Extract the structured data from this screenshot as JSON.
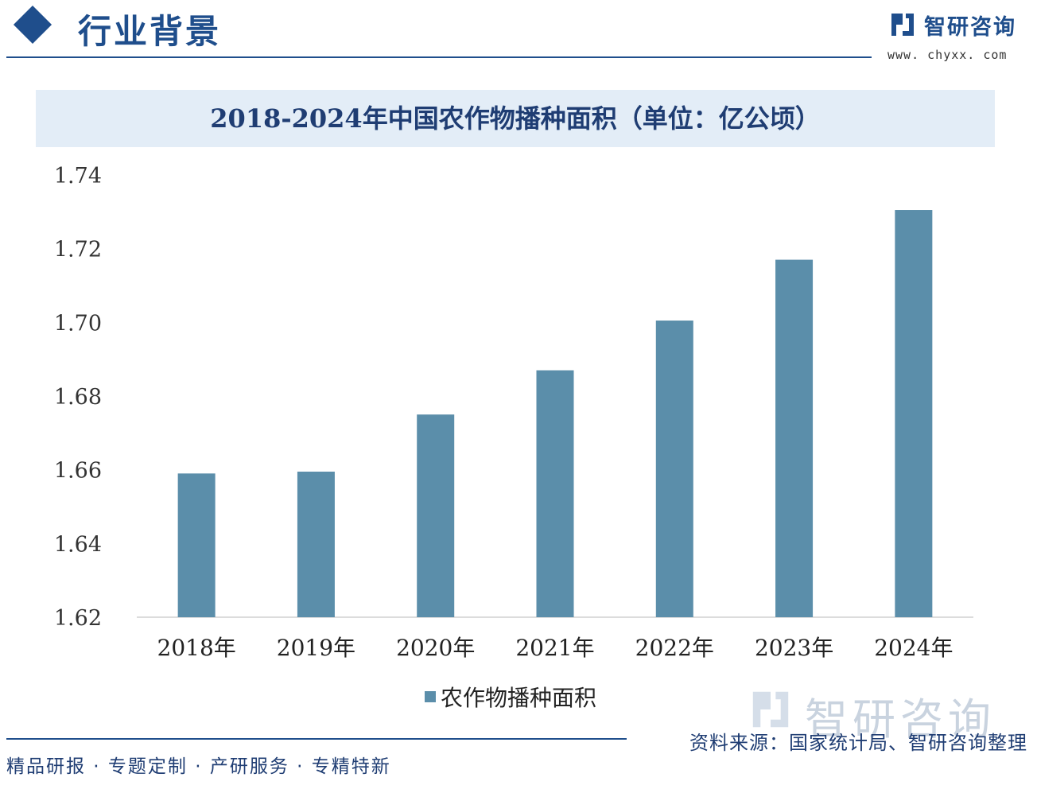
{
  "header": {
    "title": "行业背景"
  },
  "brand": {
    "name": "智研咨询",
    "url": "www. chyxx. com"
  },
  "chart_data": {
    "type": "bar",
    "title": "2018-2024年中国农作物播种面积（单位：亿公顷）",
    "categories": [
      "2018年",
      "2019年",
      "2020年",
      "2021年",
      "2022年",
      "2023年",
      "2024年"
    ],
    "series": [
      {
        "name": "农作物播种面积",
        "values": [
          1.659,
          1.6595,
          1.675,
          1.687,
          1.7005,
          1.717,
          1.7305
        ]
      }
    ],
    "y_ticks": [
      "1.74",
      "1.72",
      "1.70",
      "1.68",
      "1.66",
      "1.64",
      "1.62"
    ],
    "ylim": [
      1.62,
      1.74
    ],
    "xlabel": "",
    "ylabel": "",
    "grid": false,
    "legend_position": "bottom",
    "bar_color": "#5b8eaa"
  },
  "watermark": {
    "text": "智研咨询"
  },
  "footer": {
    "source": "资料来源：国家统计局、智研咨询整理",
    "tagline": "精品研报 · 专题定制 · 产研服务 · 专精特新"
  }
}
